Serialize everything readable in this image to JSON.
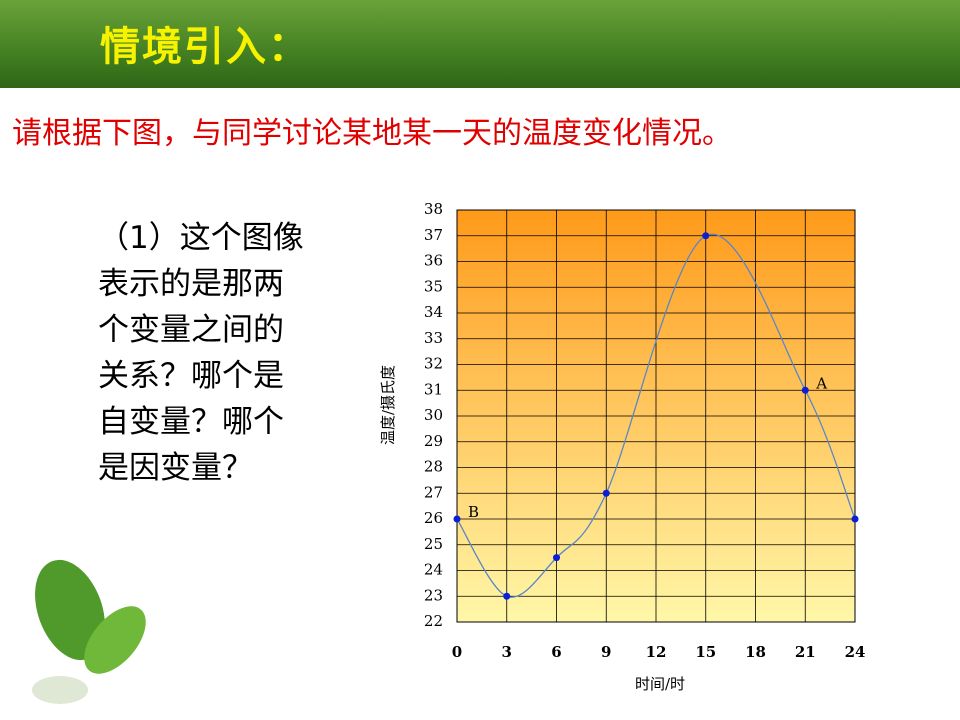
{
  "header": {
    "title": "情境引入："
  },
  "subtitle": "请根据下图，与同学讨论某地某一天的温度变化情况。",
  "question": {
    "lines": [
      "（1）这个图像",
      "表示的是那两",
      "个变量之间的",
      "关系？哪个是",
      "自变量？哪个",
      "是因变量？"
    ]
  },
  "chart_data": {
    "type": "line",
    "smooth": true,
    "x_label": "时间/时",
    "y_label": "温度/摄氏度",
    "x": [
      0,
      3,
      6,
      9,
      15,
      21,
      24
    ],
    "series": [
      {
        "color": "#0a1fd6",
        "line_color": "#5a86c8",
        "values": [
          26,
          23,
          24.5,
          27,
          37,
          31,
          26
        ],
        "point_labels": [
          "B",
          null,
          null,
          null,
          null,
          "A",
          null
        ]
      }
    ],
    "xlim": [
      0,
      24
    ],
    "xticks": [
      0,
      3,
      6,
      9,
      12,
      15,
      18,
      21,
      24
    ],
    "ylim": [
      22,
      38
    ],
    "yticks": [
      22,
      23,
      24,
      25,
      26,
      27,
      28,
      29,
      30,
      31,
      32,
      33,
      34,
      35,
      36,
      37,
      38
    ],
    "grid": true
  }
}
